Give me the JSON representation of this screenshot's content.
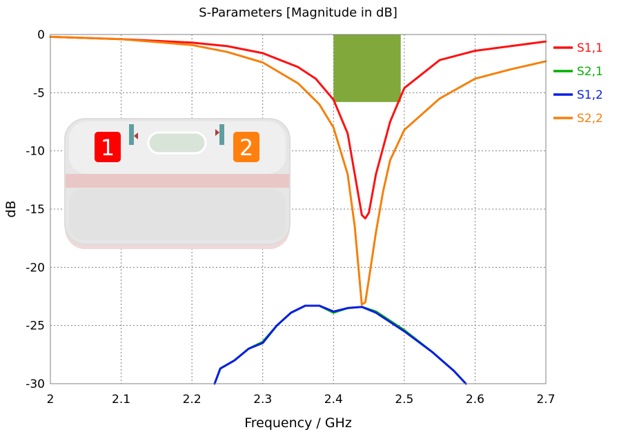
{
  "chart_data": {
    "type": "line",
    "title": "S-Parameters [Magnitude in dB]",
    "xlabel": "Frequency / GHz",
    "ylabel": "dB",
    "xlim": [
      2,
      2.7
    ],
    "ylim": [
      -30,
      0
    ],
    "x_ticks": [
      "2",
      "2.1",
      "2.2",
      "2.3",
      "2.4",
      "2.5",
      "2.6",
      "2.7"
    ],
    "y_ticks": [
      "0",
      "-5",
      "-10",
      "-15",
      "-20",
      "-25",
      "-30"
    ],
    "grid": true,
    "legend_placement": "right, top",
    "band": {
      "x": [
        2.4,
        2.495
      ],
      "y": [
        -5.8,
        0
      ],
      "color": "#80a83b"
    },
    "series": [
      {
        "name": "S1,1",
        "color": "#ff1010",
        "points": [
          [
            2,
            -0.2
          ],
          [
            2.1,
            -0.4
          ],
          [
            2.2,
            -0.7
          ],
          [
            2.25,
            -1.0
          ],
          [
            2.3,
            -1.6
          ],
          [
            2.35,
            -2.8
          ],
          [
            2.375,
            -3.8
          ],
          [
            2.4,
            -5.6
          ],
          [
            2.42,
            -8.5
          ],
          [
            2.43,
            -12
          ],
          [
            2.44,
            -15.5
          ],
          [
            2.445,
            -15.8
          ],
          [
            2.45,
            -15.3
          ],
          [
            2.46,
            -12
          ],
          [
            2.48,
            -7.5
          ],
          [
            2.5,
            -4.6
          ],
          [
            2.55,
            -2.2
          ],
          [
            2.6,
            -1.4
          ],
          [
            2.65,
            -1.0
          ],
          [
            2.7,
            -0.6
          ]
        ]
      },
      {
        "name": "S2,1",
        "color": "#00b000",
        "points": [
          [
            2.232,
            -30
          ],
          [
            2.24,
            -28.7
          ],
          [
            2.26,
            -28.0
          ],
          [
            2.28,
            -27.0
          ],
          [
            2.3,
            -26.4
          ],
          [
            2.32,
            -25.0
          ],
          [
            2.34,
            -23.9
          ],
          [
            2.36,
            -23.3
          ],
          [
            2.38,
            -23.3
          ],
          [
            2.4,
            -23.9
          ],
          [
            2.42,
            -23.5
          ],
          [
            2.44,
            -23.4
          ],
          [
            2.46,
            -23.8
          ],
          [
            2.5,
            -25.4
          ],
          [
            2.54,
            -27.3
          ],
          [
            2.57,
            -28.9
          ],
          [
            2.587,
            -30
          ]
        ]
      },
      {
        "name": "S1,2",
        "color": "#0a1ee6",
        "points": [
          [
            2.232,
            -30
          ],
          [
            2.24,
            -28.7
          ],
          [
            2.26,
            -28.0
          ],
          [
            2.28,
            -27.0
          ],
          [
            2.3,
            -26.5
          ],
          [
            2.32,
            -25.0
          ],
          [
            2.34,
            -23.9
          ],
          [
            2.36,
            -23.3
          ],
          [
            2.38,
            -23.3
          ],
          [
            2.4,
            -23.8
          ],
          [
            2.42,
            -23.5
          ],
          [
            2.44,
            -23.4
          ],
          [
            2.46,
            -23.9
          ],
          [
            2.5,
            -25.5
          ],
          [
            2.54,
            -27.3
          ],
          [
            2.57,
            -28.9
          ],
          [
            2.587,
            -30
          ]
        ]
      },
      {
        "name": "S2,2",
        "color": "#f5800a",
        "points": [
          [
            2,
            -0.2
          ],
          [
            2.1,
            -0.4
          ],
          [
            2.2,
            -0.9
          ],
          [
            2.25,
            -1.5
          ],
          [
            2.3,
            -2.4
          ],
          [
            2.35,
            -4.2
          ],
          [
            2.38,
            -6.0
          ],
          [
            2.4,
            -8.0
          ],
          [
            2.42,
            -12
          ],
          [
            2.43,
            -16.5
          ],
          [
            2.44,
            -23.2
          ],
          [
            2.445,
            -23.0
          ],
          [
            2.45,
            -21
          ],
          [
            2.46,
            -17
          ],
          [
            2.47,
            -13.5
          ],
          [
            2.48,
            -10.8
          ],
          [
            2.5,
            -8.2
          ],
          [
            2.55,
            -5.5
          ],
          [
            2.6,
            -3.8
          ],
          [
            2.65,
            -3.0
          ],
          [
            2.7,
            -2.3
          ]
        ]
      }
    ]
  },
  "inset": {
    "port1_label": "1",
    "port2_label": "2",
    "port1_color": "#ff0000",
    "port2_color": "#ff7f0e"
  }
}
